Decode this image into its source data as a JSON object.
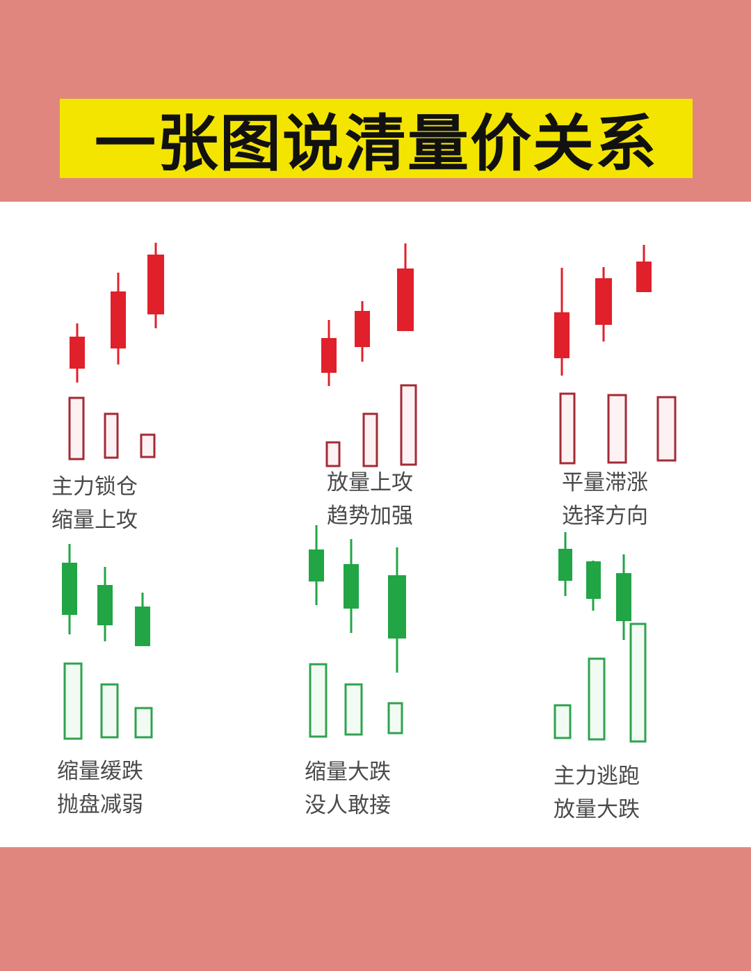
{
  "title": "一张图说清量价关系",
  "colors": {
    "background": "#e0867f",
    "banner": "#f3e500",
    "panel": "#ffffff",
    "red_candle": "#e0202a",
    "red_volume_stroke": "#a32a36",
    "red_volume_fill": "#fdf2f3",
    "green_candle": "#21a545",
    "green_volume_stroke": "#2fa24f",
    "green_volume_fill": "#f2fbf3"
  },
  "patterns": [
    {
      "id": "p1",
      "trend": "up",
      "volume": "shrinking",
      "caption_line1": "主力锁仓",
      "caption_line2": "缩量上攻"
    },
    {
      "id": "p2",
      "trend": "up",
      "volume": "expanding",
      "caption_line1": "放量上攻",
      "caption_line2": "趋势加强"
    },
    {
      "id": "p3",
      "trend": "up",
      "volume": "flat",
      "caption_line1": "平量滞涨",
      "caption_line2": "选择方向"
    },
    {
      "id": "p4",
      "trend": "down",
      "volume": "shrinking",
      "caption_line1": "缩量缓跌",
      "caption_line2": "抛盘减弱"
    },
    {
      "id": "p5",
      "trend": "down",
      "volume": "shrinking",
      "caption_line1": "缩量大跌",
      "caption_line2": "没人敢接"
    },
    {
      "id": "p6",
      "trend": "down",
      "volume": "expanding",
      "caption_line1": "主力逃跑",
      "caption_line2": "放量大跌"
    }
  ]
}
